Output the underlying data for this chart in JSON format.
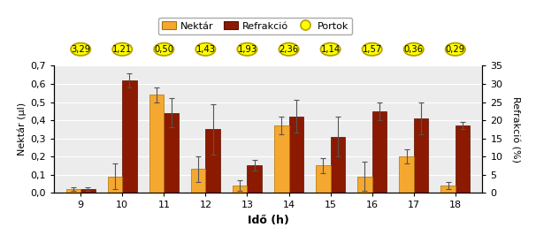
{
  "hours": [
    9,
    10,
    11,
    12,
    13,
    14,
    15,
    16,
    17,
    18
  ],
  "nektar": [
    0.02,
    0.09,
    0.54,
    0.13,
    0.04,
    0.37,
    0.15,
    0.09,
    0.2,
    0.04
  ],
  "nektar_err": [
    0.01,
    0.07,
    0.04,
    0.07,
    0.03,
    0.05,
    0.04,
    0.08,
    0.04,
    0.02
  ],
  "refrak": [
    1.0,
    31.0,
    22.0,
    17.5,
    7.5,
    21.0,
    15.5,
    22.5,
    20.5,
    18.5
  ],
  "refrak_err": [
    0.5,
    2.0,
    4.0,
    7.0,
    1.5,
    4.5,
    5.5,
    2.5,
    4.5,
    1.0
  ],
  "portok_values": [
    3.29,
    1.21,
    0.5,
    1.43,
    1.93,
    2.36,
    1.14,
    1.57,
    0.36,
    0.29
  ],
  "nektar_color": "#F5A830",
  "refrak_color": "#8B1A00",
  "portok_fill": "#FFFF00",
  "portok_edge": "#B8A000",
  "ylabel_left": "Nektár (μl)",
  "ylabel_right": "Refrakció (%)",
  "xlabel": "Idő (h)",
  "ylim_left": [
    0.0,
    0.7
  ],
  "ylim_right": [
    0,
    35
  ],
  "yticks_left": [
    0.0,
    0.1,
    0.2,
    0.3,
    0.4,
    0.5,
    0.6,
    0.7
  ],
  "ytlabels_left": [
    "0,0",
    "0,1",
    "0,2",
    "0,3",
    "0,4",
    "0,5",
    "0,6",
    "0,7"
  ],
  "yticks_right": [
    0,
    5,
    10,
    15,
    20,
    25,
    30,
    35
  ],
  "legend_labels": [
    "Nektár",
    "Refrakció",
    "Portok"
  ],
  "bg_color": "#ECECEC",
  "bar_width": 0.35
}
